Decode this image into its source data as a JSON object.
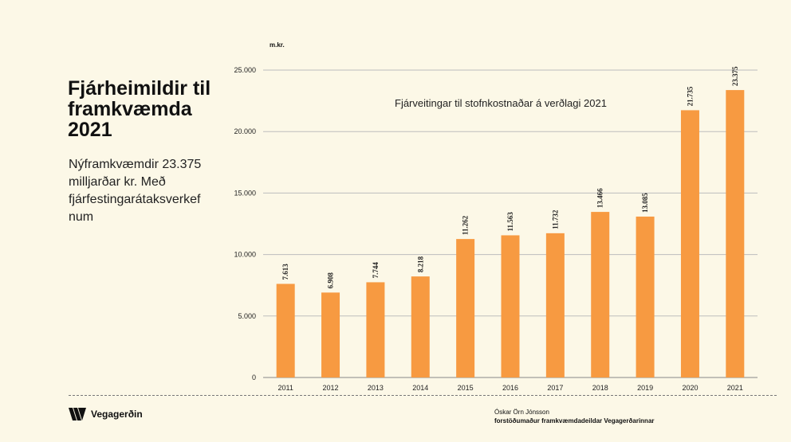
{
  "slide": {
    "title": "Fjárheimildir til framkvæmda 2021",
    "subtitle": "Nýframkvæmdir 23.375 milljarðar kr. Með fjárfestingarátaksverkef num",
    "logo_text": "Vegagerðin",
    "author_name": "Óskar Örn Jónsson",
    "author_role": "forstöðumaður framkvæmdadeildar Vegagerðarinnar"
  },
  "colors": {
    "bar": "#f79a41",
    "background": "#fcf8e7",
    "grid": "#bdbdbd"
  },
  "chart_data": {
    "type": "bar",
    "title": "Fjárveitingar til  stofnkostnaðar á verðlagi 2021",
    "ylabel": "m.kr.",
    "xlabel": "",
    "ylim": [
      0,
      25000
    ],
    "yticks": [
      0,
      5000,
      10000,
      15000,
      20000,
      25000
    ],
    "ytick_labels": [
      "0",
      "5.000",
      "10.000",
      "15.000",
      "20.000",
      "25.000"
    ],
    "grid": true,
    "categories": [
      "2011",
      "2012",
      "2013",
      "2014",
      "2015",
      "2016",
      "2017",
      "2018",
      "2019",
      "2020",
      "2021"
    ],
    "values": [
      7613,
      6908,
      7744,
      8218,
      11262,
      11563,
      11732,
      13466,
      13085,
      21735,
      23375
    ],
    "value_labels": [
      "7.613",
      "6.908",
      "7.744",
      "8.218",
      "11.262",
      "11.563",
      "11.732",
      "13.466",
      "13.085",
      "21.735",
      "23.375"
    ]
  }
}
